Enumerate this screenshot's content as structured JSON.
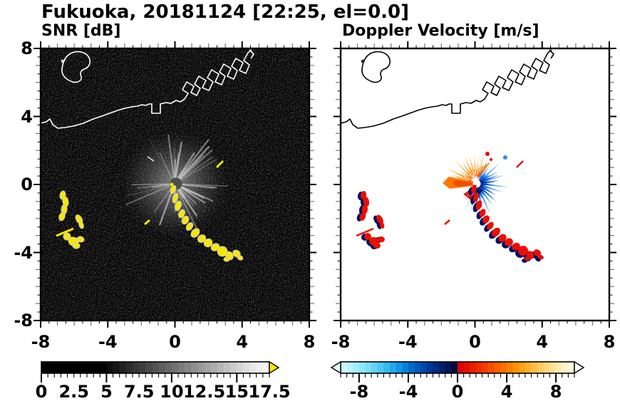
{
  "figure": {
    "title": "Fukuoka, 20181124 [22:25, el=0.0]",
    "background": "#ffffff",
    "text_color": "#000000"
  },
  "panels": {
    "snr": {
      "title": "SNR [dB]",
      "bg": "#000000",
      "coast_color": "#ffffff",
      "echo_color": "#f7e600",
      "ray_color": "#cccccc"
    },
    "doppler": {
      "title": "Doppler Velocity [m/s]",
      "bg": "#ffffff",
      "coast_color": "#000000",
      "orange_outer": "#ff9913",
      "orange_mid": "#ff7700",
      "orange_inner": "#f04f00",
      "blue_outer": "#2f8cf2",
      "blue_mid": "#0a56d8",
      "blue_dark": "#01207f",
      "navy_darkest": "#000d46",
      "echo_pos": "#e81000",
      "echo_neg": "#001166"
    }
  },
  "axes": {
    "x_ticks": [
      "-8",
      "-4",
      "0",
      "4",
      "8"
    ],
    "y_ticks": [
      "8",
      "4",
      "0",
      "-4",
      "-8"
    ],
    "xlim": [
      -8,
      8
    ],
    "ylim": [
      -8,
      8
    ],
    "minor_tick_color": "#808080"
  },
  "colorbars": {
    "snr": {
      "tick_labels": [
        "0",
        "2.5",
        "5",
        "7.5",
        "10",
        "12.5",
        "15",
        "17.5"
      ],
      "tick_values": [
        0,
        2.5,
        5,
        7.5,
        10,
        12.5,
        15,
        17.5
      ],
      "major_tick_values": [
        0,
        5,
        10,
        15
      ],
      "range": [
        0,
        17.5
      ],
      "over_color": "#ffe800",
      "segments": [
        "#000000",
        "#000000",
        "#000000",
        "#000000",
        "#000000",
        "#000000",
        "#000000",
        "#000000",
        "#000000",
        "#000000",
        "#0d0d0d",
        "#171717",
        "#212121",
        "#2b2b2b",
        "#353535",
        "#3f3f3f",
        "#494949",
        "#535353",
        "#5d5d5d",
        "#676767",
        "#717171",
        "#7b7b7b",
        "#858585",
        "#8f8f8f",
        "#999999",
        "#a3a3a3",
        "#adadad",
        "#b7b7b7",
        "#c1c1c1",
        "#cbcbcb",
        "#d5d5d5",
        "#dfdfdf",
        "#e7e7e7",
        "#efefef",
        "#f6f6f6"
      ]
    },
    "doppler": {
      "tick_labels": [
        "-8",
        "-4",
        "0",
        "4",
        "8"
      ],
      "tick_values": [
        -8,
        -4,
        0,
        4,
        8
      ],
      "major_tick_values": [
        -8,
        -4,
        0,
        4,
        8
      ],
      "range": [
        -9.5,
        9.5
      ],
      "under_color": "#e0fcff",
      "over_color": "#fffdef",
      "segments": [
        "#ccf8fe",
        "#b8f3fd",
        "#a3edfc",
        "#8ee6fb",
        "#78def9",
        "#62d4f7",
        "#4cc8f4",
        "#36baf0",
        "#22aaeb",
        "#1197e4",
        "#0682da",
        "#016ccc",
        "#0158bc",
        "#0146aa",
        "#013796",
        "#012a80",
        "#011f6a",
        "#011553",
        "#000d3c",
        "#dc0000",
        "#e60e00",
        "#ee1d00",
        "#f32d00",
        "#f63d00",
        "#f94e00",
        "#fb5f00",
        "#fc7000",
        "#fd8100",
        "#fd9204",
        "#fea216",
        "#feb02c",
        "#febe45",
        "#fecb5f",
        "#fed87a",
        "#fee396",
        "#feecb1",
        "#fff3ca",
        "#fff9e0"
      ]
    }
  },
  "chart_data": [
    {
      "type": "heatmap",
      "title": "SNR [dB]",
      "xlabel": "",
      "ylabel": "",
      "xlim": [
        -8,
        8
      ],
      "ylim": [
        -8,
        8
      ],
      "x_ticks": [
        -8,
        -4,
        0,
        4,
        8
      ],
      "y_ticks": [
        -8,
        -4,
        0,
        4,
        8
      ],
      "units": "dB",
      "colorbar": {
        "range": [
          0,
          17.5
        ],
        "ticks": [
          0,
          2.5,
          5,
          7.5,
          10,
          12.5,
          15,
          17.5
        ],
        "colormap": "black-to-white grayscale",
        "over": "yellow for SNR > 17.5 dB"
      },
      "features": [
        "low-level speckle noise (~0-3 dB) over entire black domain",
        "white coastline of Hakata Bay with island near (-5,5.5) and blocky harbor structures rising to (4,7.5)",
        "gray side-lobe starburst of rays centered at radar location (0,0), radius ~3",
        "yellow saturated echo chain from (0,-0.5) to (3.7,-4.2)",
        "yellow echo cluster near (-6.6,-1.2) and (-5.8,-3.4)",
        "small yellow echo dashes near (2.8,1.2) and (-1.8,-3.2)"
      ]
    },
    {
      "type": "heatmap",
      "title": "Doppler Velocity [m/s]",
      "xlabel": "",
      "ylabel": "",
      "xlim": [
        -8,
        8
      ],
      "ylim": [
        -8,
        8
      ],
      "x_ticks": [
        -8,
        -4,
        0,
        4,
        8
      ],
      "y_ticks": [
        -8,
        -4,
        0,
        4,
        8
      ],
      "units": "m/s",
      "colorbar": {
        "range": [
          -9.5,
          9.5
        ],
        "ticks": [
          -8,
          -4,
          0,
          4,
          8
        ],
        "colormap": "pale cyan -> dark navy (negative), red -> pale yellow (positive)",
        "under": "pale cyan < -9.5",
        "over": "pale yellow > 9.5"
      },
      "features": [
        "black coastline of Hakata Bay, same geometry as SNR panel",
        "fan of positive velocities (orange, ~+3 to +7 m/s) up and left of (0,0)",
        "fan of negative velocities (bright blue to dark navy, ~-3 to -9 m/s) right and below (0,0)",
        "white data-gap disk at radar location (0,0)",
        "red (~+8 m/s) echo chain with dark navy fringes from (0,-0.7) to (3.7,-4.2)",
        "red/navy echo clusters near (-6.6,-1.2) and (-5.8,-3.4)"
      ]
    }
  ]
}
